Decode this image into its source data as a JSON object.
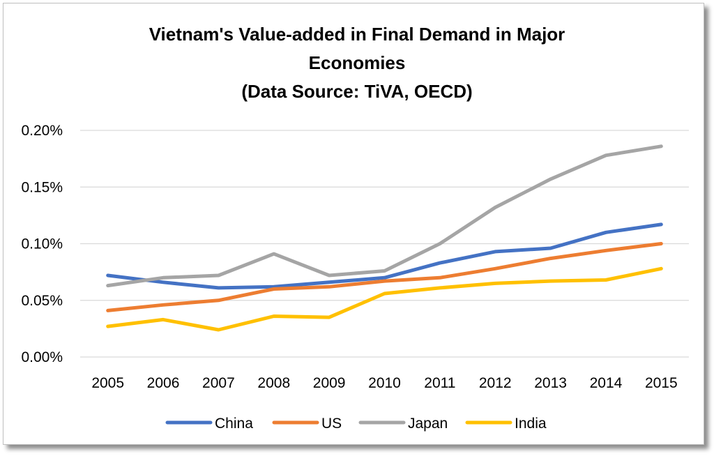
{
  "chart_data": {
    "type": "line",
    "title": [
      "Vietnam's Value-added in Final Demand in Major",
      "Economies",
      "(Data Source: TiVA, OECD)"
    ],
    "xlabel": "",
    "ylabel": "",
    "categories": [
      "2005",
      "2006",
      "2007",
      "2008",
      "2009",
      "2010",
      "2011",
      "2012",
      "2013",
      "2014",
      "2015"
    ],
    "ylim": [
      0,
      0.2
    ],
    "yticks": [
      0,
      0.05,
      0.1,
      0.15,
      0.2
    ],
    "ytick_labels": [
      "0.00%",
      "0.05%",
      "0.10%",
      "0.15%",
      "0.20%"
    ],
    "grid": true,
    "legend_position": "bottom",
    "series": [
      {
        "name": "China",
        "color": "#4472C4",
        "values": [
          0.072,
          0.066,
          0.061,
          0.062,
          0.066,
          0.07,
          0.083,
          0.093,
          0.096,
          0.11,
          0.117
        ]
      },
      {
        "name": "US",
        "color": "#ED7D31",
        "values": [
          0.041,
          0.046,
          0.05,
          0.06,
          0.062,
          0.067,
          0.07,
          0.078,
          0.087,
          0.094,
          0.1
        ]
      },
      {
        "name": "Japan",
        "color": "#A5A5A5",
        "values": [
          0.063,
          0.07,
          0.072,
          0.091,
          0.072,
          0.076,
          0.1,
          0.132,
          0.157,
          0.178,
          0.186
        ]
      },
      {
        "name": "India",
        "color": "#FFC000",
        "values": [
          0.027,
          0.033,
          0.024,
          0.036,
          0.035,
          0.056,
          0.061,
          0.065,
          0.067,
          0.068,
          0.078
        ]
      }
    ]
  }
}
